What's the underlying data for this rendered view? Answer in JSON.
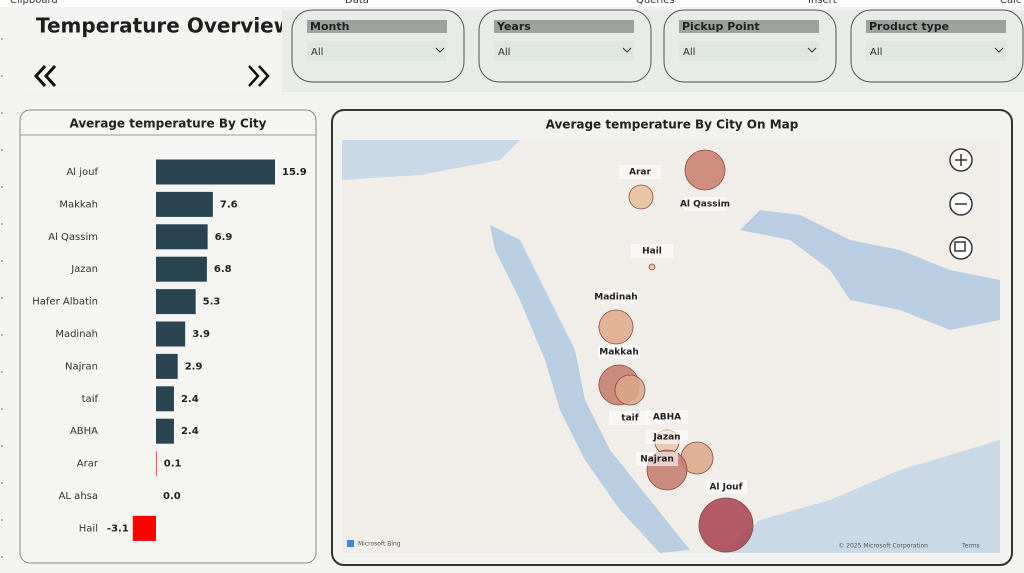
{
  "ribbon": [
    "Clipboard",
    "Data",
    "Queries",
    "Insert",
    "Calc"
  ],
  "header": {
    "title": "Temperature  Overview"
  },
  "filters": [
    {
      "label": "Month",
      "value": "All"
    },
    {
      "label": "Years",
      "value": "All"
    },
    {
      "label": "Pickup Point",
      "value": "All"
    },
    {
      "label": "Product type",
      "value": "All"
    }
  ],
  "chart_data": {
    "type": "bar",
    "orientation": "horizontal",
    "title": "Average temperature By City",
    "categories": [
      "Al jouf",
      "Makkah",
      "Al Qassim",
      "Jazan",
      "Hafer Albatin",
      "Madinah",
      "Najran",
      "taif",
      "ABHA",
      "Arar",
      "AL ahsa",
      "Hail"
    ],
    "values": [
      15.9,
      7.6,
      6.9,
      6.8,
      5.3,
      3.9,
      2.9,
      2.4,
      2.4,
      0.1,
      0,
      -3.1
    ],
    "value_labels": [
      "15.9",
      "7.6",
      "6.9",
      "6.8",
      "5.3",
      "3.9",
      "2.9",
      "2.4",
      "2.4",
      "0.1",
      "0.0",
      "-3.1"
    ],
    "colors": [
      "#2b4452",
      "#2b4452",
      "#2b4452",
      "#2b4452",
      "#2b4452",
      "#2b4452",
      "#2b4452",
      "#2b4452",
      "#2b4452",
      "#e33b2e",
      "#2b4452",
      "#ff0000"
    ]
  },
  "map": {
    "title": "Average temperature By City On Map",
    "labels": [
      "Arar",
      "Al Qassim",
      "Hail",
      "Madinah",
      "Makkah",
      "taif",
      "ABHA",
      "Jazan",
      "Najran",
      "Al Jouf"
    ],
    "brand": "Microsoft Bing",
    "copyright": "© 2025 Microsoft Corporation",
    "terms": "Terms"
  }
}
